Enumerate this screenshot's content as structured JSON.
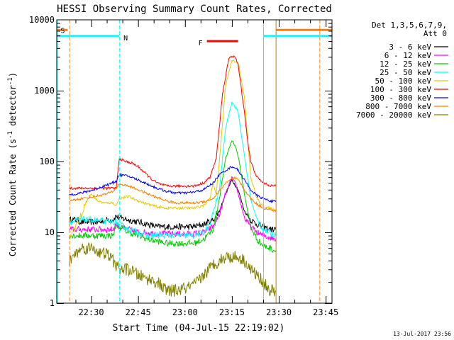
{
  "chart_data": {
    "type": "line",
    "title": "HESSI Observing Summary Count Rates, Corrected",
    "xlabel": "Start Time (04-Jul-15 22:19:02)",
    "ylabel": "Corrected Count Rate (s^-1 detector^-1)",
    "ylabel_parts": {
      "main": "Corrected Count Rate (s",
      "sup1": "-1",
      "mid": " detector",
      "sup2": "-1",
      "end": ")"
    },
    "y_scale": "log",
    "ylim": [
      1,
      10000
    ],
    "xlim_minutes": [
      0,
      88
    ],
    "x_tick_labels": [
      "22:30",
      "22:45",
      "23:00",
      "23:15",
      "23:30",
      "23:45"
    ],
    "x_tick_minutes": [
      11,
      26,
      41,
      56,
      71,
      86
    ],
    "y_tick_labels": [
      "1",
      "10",
      "100",
      "1000",
      "10000"
    ],
    "legend_header": [
      "Det 1,3,5,6,7,9,",
      "Att 0"
    ],
    "legend_placement": "top-right outside",
    "date_stamp": "13-Jul-2017 23:56",
    "flags": [
      {
        "label": "S",
        "color": "#ff8000",
        "segments": [
          [
            0,
            3.5
          ],
          [
            70,
            88
          ]
        ],
        "level": 7200
      },
      {
        "label": "N",
        "color": "#00ffff",
        "segments": [
          [
            0,
            20
          ],
          [
            66,
            88
          ]
        ],
        "level": 5900
      },
      {
        "label": "F",
        "color": "#ff0000",
        "segments": [
          [
            48,
            58
          ]
        ],
        "level": 5000
      }
    ],
    "markers": [
      {
        "color": "#00ffff",
        "style": "dashed",
        "minutes": [
          20
        ]
      },
      {
        "color": "#00ffff",
        "style": "solid",
        "minutes": [
          0,
          66
        ]
      },
      {
        "color": "#ff8000",
        "style": "dashed",
        "minutes": [
          4,
          84
        ]
      },
      {
        "color": "#c87800",
        "style": "solid",
        "minutes": [
          70
        ]
      }
    ],
    "data_coverage_minutes": [
      4,
      70
    ],
    "series": [
      {
        "name": "3 - 6 keV",
        "color": "#000000",
        "x": [
          4,
          6,
          8,
          10,
          12,
          14,
          16,
          18,
          19,
          20,
          23,
          26,
          29,
          32,
          35,
          38,
          41,
          44,
          47,
          50,
          52,
          54,
          56,
          58,
          60,
          62,
          64,
          66,
          68,
          70
        ],
        "y": [
          15,
          15,
          14,
          14,
          14,
          14,
          15,
          15,
          17,
          16,
          15,
          14,
          13,
          12,
          12,
          12,
          12,
          12,
          13,
          15,
          20,
          35,
          55,
          40,
          20,
          15,
          13,
          12,
          11,
          11
        ]
      },
      {
        "name": "6 - 12 keV",
        "color": "#ff00ff",
        "x": [
          4,
          8,
          12,
          16,
          18,
          19,
          20,
          23,
          26,
          29,
          32,
          35,
          38,
          41,
          44,
          47,
          50,
          52,
          54,
          56,
          57,
          58,
          60,
          62,
          64,
          66,
          68,
          70
        ],
        "y": [
          11,
          11,
          11,
          11,
          11,
          13,
          12,
          11,
          10,
          10,
          9.5,
          9.5,
          9.5,
          9.5,
          9.5,
          10,
          12,
          18,
          35,
          60,
          50,
          35,
          16,
          12,
          10,
          9,
          8.5,
          8
        ]
      },
      {
        "name": "12 - 25 keV",
        "color": "#00cc00",
        "x": [
          4,
          8,
          12,
          16,
          18,
          19,
          20,
          23,
          26,
          29,
          32,
          35,
          38,
          41,
          44,
          47,
          50,
          52,
          54,
          56,
          57,
          58,
          60,
          62,
          64,
          66,
          68,
          70
        ],
        "y": [
          9,
          9,
          9,
          9,
          9,
          13,
          12,
          10,
          9,
          8,
          7.5,
          7,
          7,
          7,
          7,
          8,
          11,
          30,
          110,
          200,
          170,
          120,
          35,
          12,
          8,
          6.5,
          6,
          5.5
        ]
      },
      {
        "name": "25 - 50 keV",
        "color": "#00ffff",
        "x": [
          4,
          8,
          12,
          16,
          18,
          19,
          20,
          23,
          26,
          29,
          32,
          35,
          38,
          41,
          44,
          47,
          49,
          52,
          54,
          56,
          58,
          60,
          62,
          64,
          66,
          68,
          70
        ],
        "y": [
          14,
          15,
          15,
          14,
          14,
          14,
          13,
          11,
          10,
          9,
          9,
          9,
          9,
          9,
          9,
          10,
          13,
          40,
          300,
          700,
          500,
          120,
          30,
          15,
          11,
          10,
          9
        ]
      },
      {
        "name": "50 - 100 keV",
        "color": "#e6c800",
        "x": [
          4,
          6,
          8,
          9,
          11,
          13,
          15,
          18,
          19,
          20,
          23,
          26,
          29,
          32,
          35,
          38,
          41,
          44,
          47,
          49,
          50,
          51,
          52,
          54,
          56,
          58,
          60,
          62,
          64,
          66,
          68,
          70
        ],
        "y": [
          9,
          12,
          18,
          25,
          35,
          28,
          26,
          26,
          24,
          30,
          32,
          28,
          25,
          23,
          22,
          22,
          22,
          22,
          24,
          30,
          50,
          35,
          100,
          1200,
          2700,
          2500,
          800,
          60,
          30,
          23,
          22,
          20
        ]
      },
      {
        "name": "100 - 300 keV",
        "color": "#ff0000",
        "x": [
          4,
          19,
          20,
          22,
          24,
          26,
          28,
          30,
          32,
          35,
          38,
          41,
          44,
          47,
          49,
          51,
          53,
          55,
          56,
          57,
          58,
          60,
          61,
          62,
          64,
          66,
          68,
          70
        ],
        "y": [
          42,
          42,
          110,
          100,
          95,
          85,
          70,
          58,
          50,
          45,
          45,
          45,
          45,
          50,
          60,
          110,
          900,
          2800,
          3100,
          3000,
          2300,
          500,
          200,
          100,
          60,
          50,
          46,
          45
        ]
      },
      {
        "name": "300 - 800 keV",
        "color": "#0000ff",
        "x": [
          4,
          8,
          10,
          12,
          15,
          18,
          19,
          20,
          23,
          26,
          29,
          32,
          35,
          38,
          41,
          44,
          47,
          50,
          52,
          54,
          56,
          57,
          58,
          60,
          62,
          64,
          66,
          68,
          70
        ],
        "y": [
          34,
          36,
          38,
          40,
          45,
          50,
          53,
          65,
          62,
          55,
          48,
          42,
          38,
          36,
          36,
          37,
          40,
          50,
          65,
          75,
          85,
          82,
          75,
          55,
          40,
          33,
          30,
          28,
          27
        ]
      },
      {
        "name": "800 - 7000 keV",
        "color": "#ff8000",
        "x": [
          4,
          8,
          12,
          16,
          18,
          19,
          20,
          23,
          26,
          29,
          32,
          35,
          38,
          41,
          44,
          47,
          50,
          52,
          54,
          56,
          57,
          58,
          60,
          62,
          64,
          66,
          68,
          70
        ],
        "y": [
          28,
          30,
          32,
          35,
          38,
          42,
          48,
          45,
          40,
          35,
          31,
          28,
          26,
          26,
          26,
          27,
          30,
          38,
          50,
          56,
          58,
          55,
          40,
          30,
          25,
          22,
          21,
          20
        ]
      },
      {
        "name": "7000 - 20000 keV",
        "color": "#808000",
        "x": [
          4,
          6,
          8,
          10,
          12,
          14,
          16,
          18,
          20,
          23,
          26,
          29,
          32,
          35,
          38,
          41,
          44,
          47,
          50,
          52,
          54,
          56,
          58,
          60,
          62,
          64,
          66,
          68,
          70
        ],
        "y": [
          4,
          5,
          6,
          6,
          6,
          5,
          5,
          4,
          3,
          3,
          2.5,
          2.2,
          2,
          1.5,
          1.5,
          1.6,
          1.8,
          2.5,
          3.5,
          4,
          4.5,
          4.5,
          4.5,
          4,
          3,
          2.5,
          2,
          1.5,
          1.5
        ]
      }
    ]
  }
}
